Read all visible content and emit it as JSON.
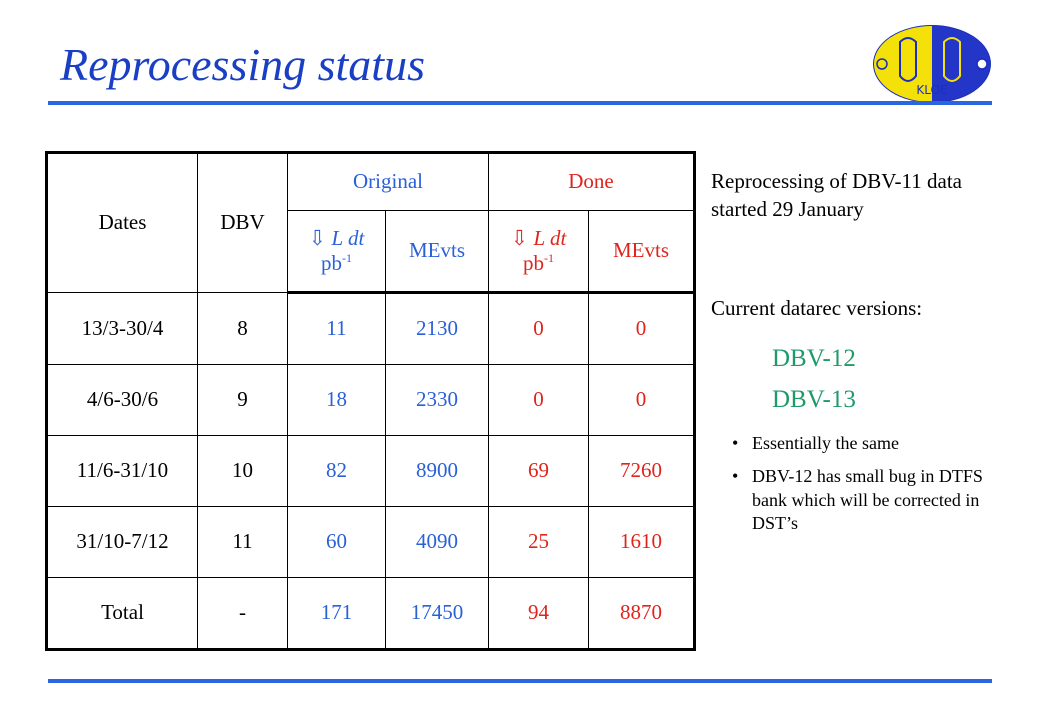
{
  "title": "Reprocessing status",
  "logo_text": "KLOE",
  "colors": {
    "title": "#1a3fc4",
    "rule": "#2a66e0",
    "original": "#2a60d8",
    "done": "#e0241c",
    "dbv": "#1f9a6a"
  },
  "table": {
    "headers": {
      "dates": "Dates",
      "dbv": "DBV",
      "original": "Original",
      "done": "Done",
      "lumi_symbol": "⇩ L dt",
      "lumi_unit": "pb",
      "lumi_exp": "-1",
      "mevts": "MEvts"
    },
    "rows": [
      {
        "dates": "13/3-30/4",
        "dbv": "8",
        "orig_lumi": "11",
        "orig_mevts": "2130",
        "done_lumi": "0",
        "done_mevts": "0"
      },
      {
        "dates": "4/6-30/6",
        "dbv": "9",
        "orig_lumi": "18",
        "orig_mevts": "2330",
        "done_lumi": "0",
        "done_mevts": "0"
      },
      {
        "dates": "11/6-31/10",
        "dbv": "10",
        "orig_lumi": "82",
        "orig_mevts": "8900",
        "done_lumi": "69",
        "done_mevts": "7260"
      },
      {
        "dates": "31/10-7/12",
        "dbv": "11",
        "orig_lumi": "60",
        "orig_mevts": "4090",
        "done_lumi": "25",
        "done_mevts": "1610"
      },
      {
        "dates": "Total",
        "dbv": "-",
        "orig_lumi": "171",
        "orig_mevts": "17450",
        "done_lumi": "94",
        "done_mevts": "8870"
      }
    ]
  },
  "side": {
    "para1_line1": "Reprocessing of DBV-11 data",
    "para1_line2": "started 29 January",
    "para2": "Current datarec versions:",
    "versions": [
      "DBV-12",
      "DBV-13"
    ],
    "bullets": [
      "Essentially the same",
      "DBV-12 has small bug in DTFS bank which will be corrected in DST’s"
    ]
  }
}
